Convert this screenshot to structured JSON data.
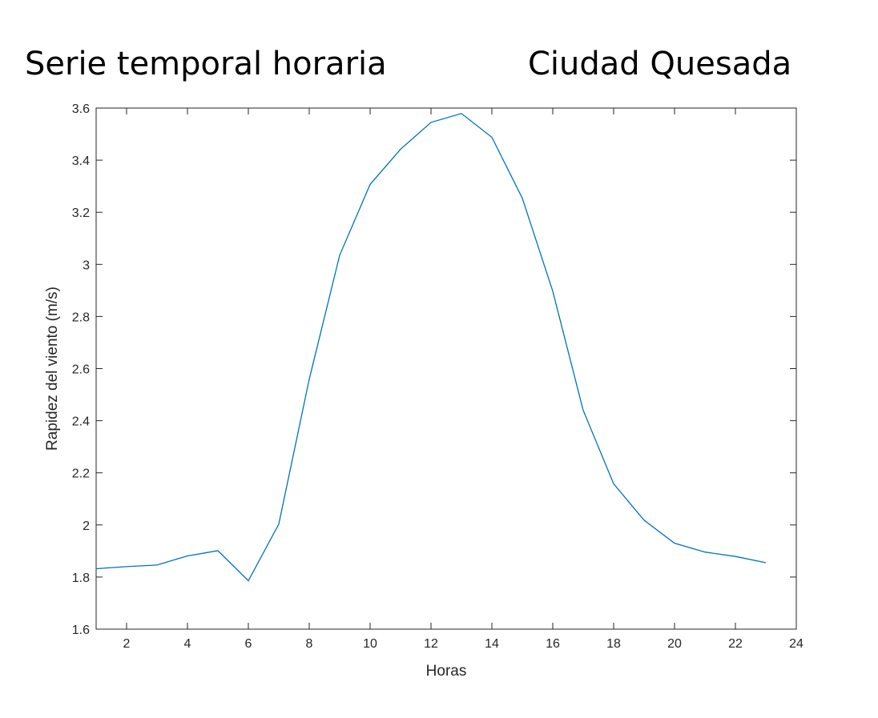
{
  "header": {
    "title_left": "Serie temporal horaria",
    "title_right": "Ciudad Quesada"
  },
  "chart_data": {
    "type": "line",
    "title": "",
    "xlabel": "Horas",
    "ylabel": "Rapidez del viento (m/s)",
    "xlim": [
      1,
      24
    ],
    "ylim": [
      1.6,
      3.6
    ],
    "xticks": [
      2,
      4,
      6,
      8,
      10,
      12,
      14,
      16,
      18,
      20,
      22,
      24
    ],
    "xtick_labels": [
      "2",
      "4",
      "6",
      "8",
      "10",
      "12",
      "14",
      "16",
      "18",
      "20",
      "22",
      "24"
    ],
    "yticks": [
      1.6,
      1.8,
      2,
      2.2,
      2.4,
      2.6,
      2.8,
      3,
      3.2,
      3.4,
      3.6
    ],
    "ytick_labels": [
      "1.6",
      "1.8",
      "2",
      "2.2",
      "2.4",
      "2.6",
      "2.8",
      "3",
      "3.2",
      "3.4",
      "3.6"
    ],
    "grid": false,
    "line_color": "#0072BD",
    "series": [
      {
        "x": [
          1,
          2,
          3,
          4,
          5,
          6,
          7,
          8,
          9,
          10,
          11,
          12,
          13,
          14,
          15,
          16,
          17,
          18,
          19,
          20,
          21,
          22,
          23
        ],
        "values": [
          1.832,
          1.84,
          1.846,
          1.881,
          1.901,
          1.786,
          2.003,
          2.559,
          3.035,
          3.307,
          3.442,
          3.545,
          3.579,
          3.488,
          3.254,
          2.897,
          2.44,
          2.158,
          2.018,
          1.93,
          1.896,
          1.879,
          1.855
        ]
      }
    ]
  }
}
